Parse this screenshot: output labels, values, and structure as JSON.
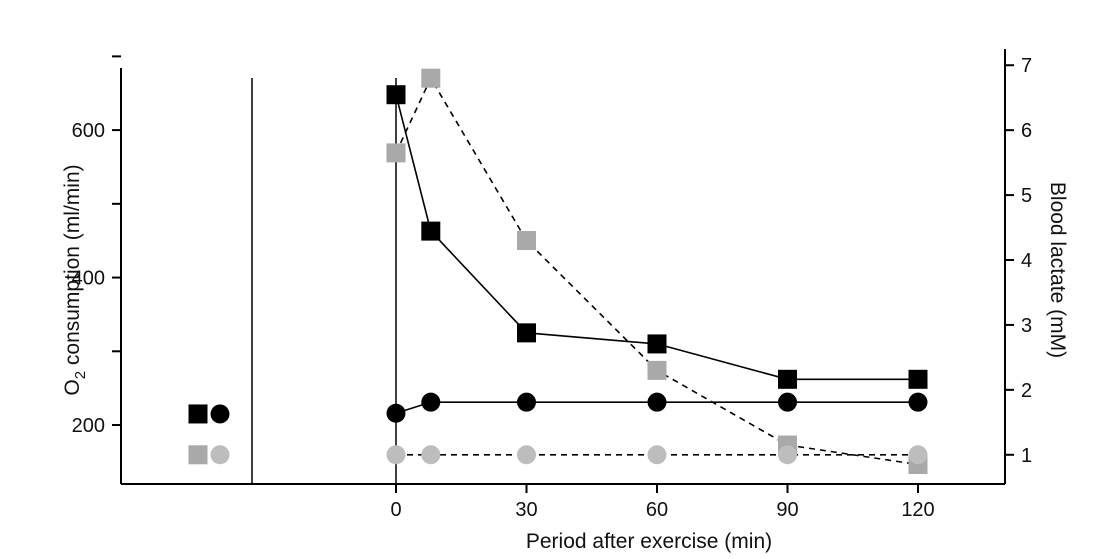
{
  "chart_data": {
    "type": "line",
    "xlabel": "Period after exercise (min)",
    "ylabel_left": "O₂ consumption (ml/min)",
    "ylabel_left_parts": {
      "pre": "O",
      "sub": "2",
      "post": " consumption (ml/min)"
    },
    "ylabel_right": "Blood lactate (mM)",
    "x_ticks": [
      0,
      30,
      60,
      90,
      120
    ],
    "y_left_ticks": [
      200,
      400,
      600
    ],
    "y_right_ticks": [
      1,
      2,
      3,
      4,
      5,
      6,
      7
    ],
    "xlim": [
      0,
      140
    ],
    "y_left_lim": [
      120,
      710
    ],
    "y_right_lim": [
      0.55,
      7.25
    ],
    "grid": false,
    "legend": "none",
    "series": [
      {
        "axis": "left",
        "marker": "square",
        "color": "#000000",
        "line": "solid",
        "baseline": 215,
        "x": [
          0,
          8,
          30,
          60,
          90,
          120
        ],
        "values": [
          648,
          463,
          325,
          310,
          262,
          262
        ]
      },
      {
        "axis": "right",
        "marker": "square",
        "color": "#a9a9a9",
        "line": "dashed",
        "line_color": "#000000",
        "baseline": 1.0,
        "x": [
          0,
          8,
          30,
          60,
          90,
          120
        ],
        "values": [
          5.65,
          6.8,
          4.3,
          2.3,
          1.15,
          0.85
        ]
      },
      {
        "axis": "left",
        "marker": "circle",
        "color": "#000000",
        "line": "solid",
        "baseline": 215,
        "x": [
          0,
          8,
          30,
          60,
          90,
          120
        ],
        "values": [
          216,
          231,
          231,
          231,
          231,
          231
        ]
      },
      {
        "axis": "right",
        "marker": "circle",
        "color": "#bdbdbd",
        "line": "dashed",
        "line_color": "#000000",
        "baseline": 1.0,
        "x": [
          0,
          8,
          30,
          60,
          90,
          120
        ],
        "values": [
          1.0,
          1.0,
          1.0,
          1.0,
          1.0,
          1.0
        ]
      }
    ]
  }
}
